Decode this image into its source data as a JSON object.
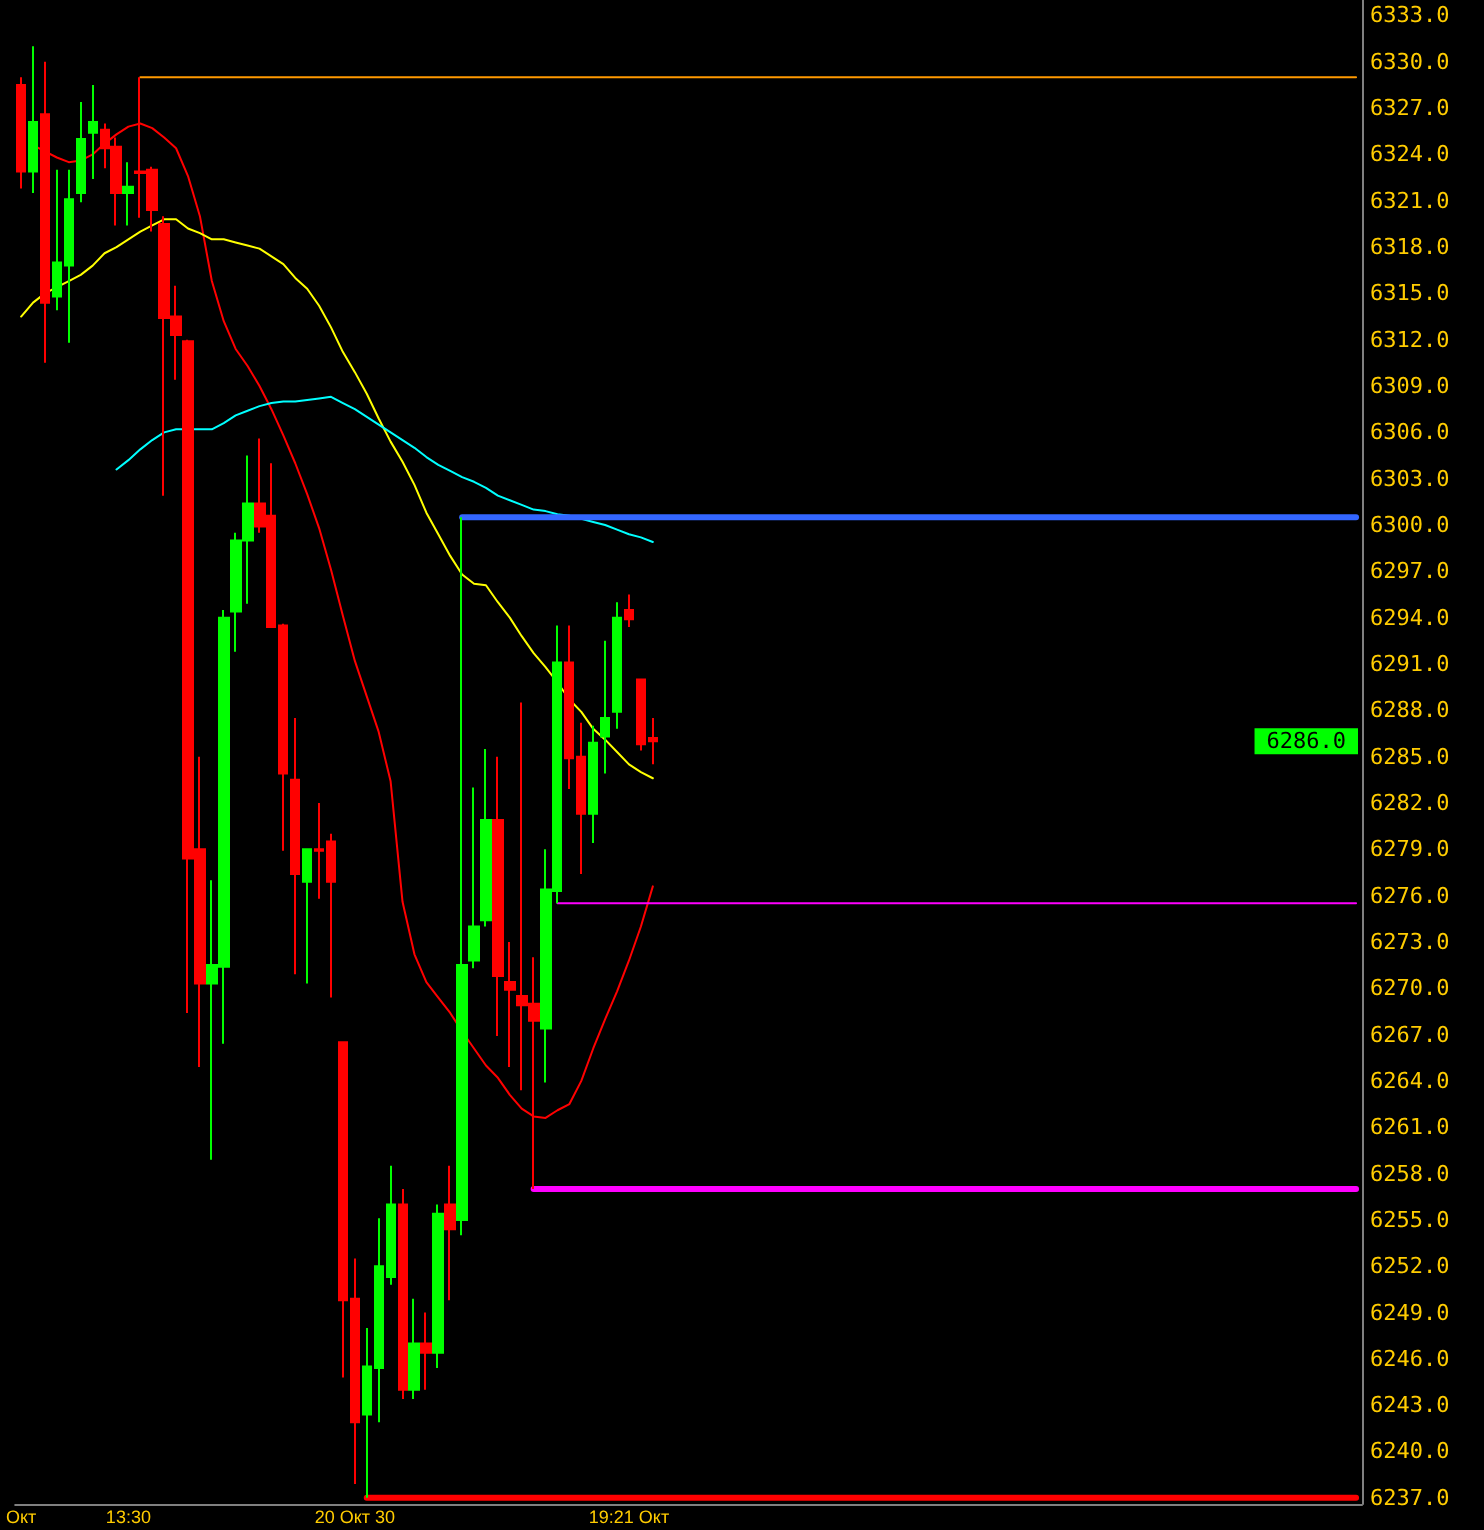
{
  "chart_data": {
    "type": "candlestick",
    "categories": [
      "Окт",
      null,
      null,
      null,
      null,
      null,
      null,
      null,
      null,
      "13:30",
      null,
      null,
      null,
      null,
      null,
      null,
      null,
      null,
      null,
      null,
      null,
      null,
      null,
      null,
      null,
      null,
      null,
      null,
      "20 Окт 30",
      null,
      null,
      null,
      null,
      null,
      null,
      null,
      null,
      null,
      null,
      null,
      null,
      null,
      null,
      null,
      null,
      null,
      null,
      null,
      null,
      null,
      null,
      "19:21 Окт",
      null,
      null,
      null,
      null,
      null,
      null,
      null,
      null,
      null,
      null,
      null,
      null,
      null,
      null,
      null,
      null,
      null,
      null,
      null,
      null,
      null,
      null,
      null,
      null,
      null,
      null,
      null,
      null,
      null,
      null,
      null,
      null,
      null,
      null,
      null,
      null,
      null,
      null,
      null,
      null,
      null,
      null,
      null,
      null,
      null,
      null,
      null,
      null,
      null,
      null,
      null,
      null,
      null,
      null,
      null,
      null,
      null,
      null,
      null,
      null,
      null
    ],
    "ohlc": [
      [
        6328.5,
        6329.0,
        6321.8,
        6322.9
      ],
      [
        6322.9,
        6331.0,
        6321.5,
        6326.1
      ],
      [
        6326.6,
        6330.0,
        6310.5,
        6314.4
      ],
      [
        6314.8,
        6323.0,
        6313.9,
        6317.0
      ],
      [
        6316.8,
        6323.0,
        6311.8,
        6321.1
      ],
      [
        6321.5,
        6327.4,
        6320.9,
        6325.0
      ],
      [
        6325.4,
        6328.5,
        6322.4,
        6326.1
      ],
      [
        6325.6,
        6326.0,
        6323.1,
        6324.4
      ],
      [
        6324.5,
        6325.1,
        6319.4,
        6321.5
      ],
      [
        6321.5,
        6323.5,
        6319.4,
        6321.9
      ],
      [
        6322.9,
        6329.0,
        6319.9,
        6322.8
      ],
      [
        6323.0,
        6323.2,
        6319.0,
        6320.4
      ],
      [
        6319.5,
        6320.0,
        6301.9,
        6313.4
      ],
      [
        6313.5,
        6315.5,
        6309.4,
        6312.3
      ],
      [
        6311.9,
        6312.0,
        6268.4,
        6278.4
      ],
      [
        6279.0,
        6285.0,
        6264.9,
        6270.3
      ],
      [
        6270.3,
        6277.0,
        6258.9,
        6271.5
      ],
      [
        6271.4,
        6294.5,
        6266.4,
        6294.0
      ],
      [
        6294.4,
        6299.5,
        6291.8,
        6299.0
      ],
      [
        6299.0,
        6304.5,
        6294.9,
        6301.4
      ],
      [
        6301.4,
        6305.6,
        6299.5,
        6299.9
      ],
      [
        6300.6,
        6304.0,
        6293.4,
        6293.4
      ],
      [
        6293.5,
        6293.6,
        6278.9,
        6283.9
      ],
      [
        6283.5,
        6287.5,
        6270.9,
        6277.4
      ],
      [
        6276.9,
        6279.0,
        6270.3,
        6279.0
      ],
      [
        6279.0,
        6282.0,
        6275.8,
        6278.9
      ],
      [
        6279.5,
        6280.0,
        6269.4,
        6276.9
      ],
      [
        6266.5,
        6266.5,
        6244.8,
        6249.8
      ],
      [
        6249.9,
        6252.5,
        6237.9,
        6241.9
      ],
      [
        6242.4,
        6248.0,
        6237.0,
        6245.5
      ],
      [
        6245.4,
        6255.1,
        6241.9,
        6252.0
      ],
      [
        6251.3,
        6258.5,
        6250.8,
        6256.0
      ],
      [
        6256.0,
        6257.0,
        6243.4,
        6244.0
      ],
      [
        6244.0,
        6249.9,
        6243.4,
        6247.0
      ],
      [
        6247.0,
        6249.0,
        6244.0,
        6246.4
      ],
      [
        6246.4,
        6256.0,
        6245.4,
        6255.4
      ],
      [
        6256.0,
        6258.5,
        6249.8,
        6254.4
      ],
      [
        6255.0,
        6300.5,
        6254.0,
        6271.5
      ],
      [
        6271.8,
        6283.0,
        6271.3,
        6274.0
      ],
      [
        6274.4,
        6285.5,
        6274.0,
        6280.9
      ],
      [
        6280.9,
        6285.0,
        6266.9,
        6270.8
      ],
      [
        6270.4,
        6273.0,
        6264.9,
        6269.9
      ],
      [
        6269.5,
        6288.5,
        6263.4,
        6268.9
      ],
      [
        6269.0,
        6272.0,
        6257.0,
        6267.9
      ],
      [
        6267.4,
        6279.0,
        6263.9,
        6276.4
      ],
      [
        6276.3,
        6293.5,
        6275.5,
        6291.1
      ],
      [
        6291.1,
        6293.5,
        6282.9,
        6284.9
      ],
      [
        6285.0,
        6287.2,
        6277.4,
        6281.3
      ],
      [
        6281.3,
        6287.0,
        6279.4,
        6285.9
      ],
      [
        6286.3,
        6292.5,
        6283.9,
        6287.5
      ],
      [
        6287.9,
        6295.0,
        6286.8,
        6294.0
      ],
      [
        6294.5,
        6295.5,
        6293.4,
        6293.9
      ],
      [
        6290.0,
        6290.0,
        6285.4,
        6285.8
      ],
      [
        6286.2,
        6287.5,
        6284.5,
        6286.0
      ],
      null,
      null,
      null,
      null,
      null,
      null,
      null,
      null,
      null,
      null,
      null,
      null,
      null,
      null,
      null,
      null,
      null,
      null,
      null,
      null,
      null,
      null,
      null,
      null,
      null,
      null,
      null,
      null,
      null,
      null,
      null,
      null,
      null,
      null,
      null,
      null,
      null,
      null,
      null,
      null,
      null,
      null,
      null,
      null,
      null,
      null,
      null,
      null,
      null,
      null,
      null,
      null,
      null,
      null,
      null,
      null,
      null,
      null,
      null
    ],
    "colors": [
      "#ff0000",
      "#00ff00",
      "#ff0000",
      "#00ff00",
      "#00ff00",
      "#00ff00",
      "#00ff00",
      "#ff0000",
      "#ff0000",
      "#00ff00",
      "#ff0000",
      "#ff0000",
      "#ff0000",
      "#ff0000",
      "#ff0000",
      "#ff0000",
      "#00ff00",
      "#00ff00",
      "#00ff00",
      "#00ff00",
      "#ff0000",
      "#ff0000",
      "#ff0000",
      "#ff0000",
      "#00ff00",
      "#ff0000",
      "#ff0000",
      "#ff0000",
      "#ff0000",
      "#00ff00",
      "#00ff00",
      "#00ff00",
      "#ff0000",
      "#00ff00",
      "#ff0000",
      "#00ff00",
      "#ff0000",
      "#00ff00",
      "#00ff00",
      "#00ff00",
      "#ff0000",
      "#ff0000",
      "#ff0000",
      "#ff0000",
      "#00ff00",
      "#00ff00",
      "#ff0000",
      "#ff0000",
      "#00ff00",
      "#00ff00",
      "#00ff00",
      "#ff0000",
      "#ff0000",
      "#ff0000",
      null,
      null,
      null,
      null,
      null,
      null,
      null,
      null,
      null,
      null,
      null,
      null,
      null,
      null,
      null,
      null,
      null,
      null,
      null,
      null,
      null,
      null,
      null,
      null,
      null,
      null,
      null,
      null,
      null,
      null,
      null,
      null,
      null,
      null,
      null,
      null,
      null,
      null,
      null,
      null,
      null,
      null,
      null,
      null,
      null,
      null,
      null,
      null,
      null,
      null,
      null,
      null,
      null,
      null,
      null,
      null,
      null,
      null,
      null
    ],
    "series": [
      {
        "type": "line",
        "color": "#ff0000",
        "values": [
          null,
          6324.6,
          6324.2,
          6323.8,
          6323.5,
          6323.6,
          6324.0,
          6324.7,
          6325.3,
          6325.8,
          6326.0,
          6325.7,
          6325.1,
          6324.4,
          6322.6,
          6320.0,
          6315.8,
          6313.2,
          6311.4,
          6310.3,
          6309.0,
          6307.5,
          6305.8,
          6304.0,
          6302.0,
          6299.8,
          6297.1,
          6294.1,
          6291.2,
          6288.9,
          6286.6,
          6283.4,
          6275.6,
          6272.2,
          6270.4,
          6269.4,
          6268.4,
          6267.2,
          6266.1,
          6265.0,
          6264.2,
          6263.1,
          6262.2,
          6261.7,
          6261.6,
          6262.1,
          6262.5,
          6264.0,
          6266.1,
          6268.0,
          6269.8,
          6271.8,
          6274.0,
          6276.6,
          null,
          null,
          null,
          null,
          null,
          null,
          null,
          null,
          null,
          null,
          null,
          null,
          null,
          null,
          null,
          null,
          null,
          null,
          null,
          null,
          null,
          null,
          null,
          null,
          null,
          null,
          null,
          null,
          null,
          null,
          null,
          null,
          null,
          null,
          null,
          null,
          null,
          null,
          null,
          null,
          null,
          null,
          null,
          null,
          null,
          null,
          null,
          null,
          null,
          null,
          null,
          null,
          null,
          null,
          null,
          null,
          null,
          null,
          null
        ]
      },
      {
        "type": "line",
        "color": "#ffff00",
        "values": [
          6313.5,
          6314.4,
          6315.0,
          6315.4,
          6315.8,
          6316.2,
          6316.8,
          6317.6,
          6318.0,
          6318.5,
          6319.0,
          6319.4,
          6319.8,
          6319.8,
          6319.2,
          6318.9,
          6318.5,
          6318.5,
          6318.3,
          6318.1,
          6317.9,
          6317.4,
          6316.9,
          6316.0,
          6315.3,
          6314.2,
          6312.8,
          6311.2,
          6309.9,
          6308.5,
          6306.9,
          6305.4,
          6304.1,
          6302.6,
          6300.8,
          6299.4,
          6298.0,
          6296.8,
          6296.2,
          6296.1,
          6295.0,
          6294.0,
          6292.8,
          6291.7,
          6290.8,
          6289.8,
          6288.7,
          6287.9,
          6286.8,
          6286.1,
          6285.3,
          6284.5,
          6284.0,
          6283.6,
          null,
          null,
          null,
          null,
          null,
          null,
          null,
          null,
          null,
          null,
          null,
          null,
          null,
          null,
          null,
          null,
          null,
          null,
          null,
          null,
          null,
          null,
          null,
          null,
          null,
          null,
          null,
          null,
          null,
          null,
          null,
          null,
          null,
          null,
          null,
          null,
          null,
          null,
          null,
          null,
          null,
          null,
          null,
          null,
          null,
          null,
          null,
          null,
          null,
          null,
          null,
          null,
          null,
          null,
          null,
          null,
          null,
          null,
          null
        ]
      },
      {
        "type": "line",
        "color": "#00ffff",
        "values": [
          null,
          null,
          null,
          null,
          null,
          null,
          null,
          null,
          6303.6,
          6304.2,
          6304.9,
          6305.5,
          6306.0,
          6306.2,
          6306.2,
          6306.2,
          6306.2,
          6306.6,
          6307.1,
          6307.4,
          6307.7,
          6307.9,
          6308.0,
          6308.0,
          6308.1,
          6308.2,
          6308.3,
          6307.9,
          6307.5,
          6307.0,
          6306.5,
          6306.0,
          6305.5,
          6305.0,
          6304.4,
          6303.9,
          6303.5,
          6303.1,
          6302.8,
          6302.4,
          6301.9,
          6301.6,
          6301.3,
          6301.0,
          6300.9,
          6300.7,
          6300.6,
          6300.4,
          6300.2,
          6300.0,
          6299.7,
          6299.4,
          6299.2,
          6298.9,
          null,
          null,
          null,
          null,
          null,
          null,
          null,
          null,
          null,
          null,
          null,
          null,
          null,
          null,
          null,
          null,
          null,
          null,
          null,
          null,
          null,
          null,
          null,
          null,
          null,
          null,
          null,
          null,
          null,
          null,
          null,
          null,
          null,
          null,
          null,
          null,
          null,
          null,
          null,
          null,
          null,
          null,
          null,
          null,
          null,
          null,
          null,
          null,
          null,
          null,
          null,
          null,
          null,
          null,
          null,
          null,
          null,
          null,
          null
        ]
      },
      {
        "type": "line",
        "color": "#ff9900",
        "values": [
          null,
          null,
          null,
          null,
          null,
          null,
          null,
          null,
          null,
          null,
          6329,
          6329,
          6329,
          6329,
          6329,
          6329,
          6329,
          6329,
          6329,
          6329,
          6329,
          6329,
          6329,
          6329,
          6329,
          6329,
          6329,
          6329,
          6329,
          6329,
          6329,
          6329,
          6329,
          6329,
          6329,
          6329,
          6329,
          6329,
          6329,
          6329,
          6329,
          6329,
          6329,
          6329,
          6329,
          6329,
          6329,
          6329,
          6329,
          6329,
          6329,
          6329,
          6329,
          6329,
          6329,
          6329,
          6329,
          6329,
          6329,
          6329,
          6329,
          6329,
          6329,
          6329,
          6329,
          6329,
          6329,
          6329,
          6329,
          6329,
          6329,
          6329,
          6329,
          6329,
          6329,
          6329,
          6329,
          6329,
          6329,
          6329,
          6329,
          6329,
          6329,
          6329,
          6329,
          6329,
          6329,
          6329,
          6329,
          6329,
          6329,
          6329,
          6329,
          6329,
          6329,
          6329,
          6329,
          6329,
          6329,
          6329,
          6329,
          6329,
          6329,
          6329,
          6329,
          6329,
          6329,
          6329,
          6329,
          6329,
          6329,
          6329,
          6329
        ]
      },
      {
        "type": "line",
        "color": "#3366ff",
        "values": [
          null,
          null,
          null,
          null,
          null,
          null,
          null,
          null,
          null,
          null,
          null,
          null,
          null,
          null,
          null,
          null,
          null,
          null,
          null,
          null,
          null,
          null,
          null,
          null,
          null,
          null,
          null,
          null,
          null,
          null,
          null,
          null,
          null,
          null,
          null,
          null,
          null,
          6300.5,
          6300.5,
          6300.5,
          6300.5,
          6300.5,
          6300.5,
          6300.5,
          6300.5,
          6300.5,
          6300.5,
          6300.5,
          6300.5,
          6300.5,
          6300.5,
          6300.5,
          6300.5,
          6300.5,
          6300.5,
          6300.5,
          6300.5,
          6300.5,
          6300.5,
          6300.5,
          6300.5,
          6300.5,
          6300.5,
          6300.5,
          6300.5,
          6300.5,
          6300.5,
          6300.5,
          6300.5,
          6300.5,
          6300.5,
          6300.5,
          6300.5,
          6300.5,
          6300.5,
          6300.5,
          6300.5,
          6300.5,
          6300.5,
          6300.5,
          6300.5,
          6300.5,
          6300.5,
          6300.5,
          6300.5,
          6300.5,
          6300.5,
          6300.5,
          6300.5,
          6300.5,
          6300.5,
          6300.5,
          6300.5,
          6300.5,
          6300.5,
          6300.5,
          6300.5,
          6300.5,
          6300.5,
          6300.5,
          6300.5,
          6300.5,
          6300.5,
          6300.5,
          6300.5,
          6300.5,
          6300.5,
          6300.5,
          6300.5,
          6300.5,
          6300.5,
          6300.5,
          6300.5
        ]
      },
      {
        "type": "line",
        "color": "#ff00ff",
        "values": [
          null,
          null,
          null,
          null,
          null,
          null,
          null,
          null,
          null,
          null,
          null,
          null,
          null,
          null,
          null,
          null,
          null,
          null,
          null,
          null,
          null,
          null,
          null,
          null,
          null,
          null,
          null,
          null,
          null,
          null,
          null,
          null,
          null,
          null,
          null,
          null,
          null,
          null,
          null,
          null,
          null,
          null,
          null,
          null,
          null,
          6275.5,
          6275.5,
          6275.5,
          6275.5,
          6275.5,
          6275.5,
          6275.5,
          6275.5,
          6275.5,
          6275.5,
          6275.5,
          6275.5,
          6275.5,
          6275.5,
          6275.5,
          6275.5,
          6275.5,
          6275.5,
          6275.5,
          6275.5,
          6275.5,
          6275.5,
          6275.5,
          6275.5,
          6275.5,
          6275.5,
          6275.5,
          6275.5,
          6275.5,
          6275.5,
          6275.5,
          6275.5,
          6275.5,
          6275.5,
          6275.5,
          6275.5,
          6275.5,
          6275.5,
          6275.5,
          6275.5,
          6275.5,
          6275.5,
          6275.5,
          6275.5,
          6275.5,
          6275.5,
          6275.5,
          6275.5,
          6275.5,
          6275.5,
          6275.5,
          6275.5,
          6275.5,
          6275.5,
          6275.5,
          6275.5,
          6275.5,
          6275.5,
          6275.5,
          6275.5,
          6275.5,
          6275.5,
          6275.5,
          6275.5,
          6275.5,
          6275.5,
          6275.5,
          6275.5
        ]
      },
      {
        "type": "line",
        "color": "#ff00ff",
        "values": [
          null,
          null,
          null,
          null,
          null,
          null,
          null,
          null,
          null,
          null,
          null,
          null,
          null,
          null,
          null,
          null,
          null,
          null,
          null,
          null,
          null,
          null,
          null,
          null,
          null,
          null,
          null,
          null,
          null,
          null,
          null,
          null,
          null,
          null,
          null,
          null,
          null,
          null,
          null,
          null,
          null,
          null,
          null,
          6257,
          6257,
          6257,
          6257,
          6257,
          6257,
          6257,
          6257,
          6257,
          6257,
          6257,
          6257,
          6257,
          6257,
          6257,
          6257,
          6257,
          6257,
          6257,
          6257,
          6257,
          6257,
          6257,
          6257,
          6257,
          6257,
          6257,
          6257,
          6257,
          6257,
          6257,
          6257,
          6257,
          6257,
          6257,
          6257,
          6257,
          6257,
          6257,
          6257,
          6257,
          6257,
          6257,
          6257,
          6257,
          6257,
          6257,
          6257,
          6257,
          6257,
          6257,
          6257,
          6257,
          6257,
          6257,
          6257,
          6257,
          6257,
          6257,
          6257,
          6257,
          6257,
          6257,
          6257,
          6257,
          6257,
          6257,
          6257,
          6257,
          6257
        ]
      },
      {
        "type": "line",
        "color": "#ff0000",
        "values": [
          null,
          null,
          null,
          null,
          null,
          null,
          null,
          null,
          null,
          null,
          null,
          null,
          null,
          null,
          null,
          null,
          null,
          null,
          null,
          null,
          null,
          null,
          null,
          null,
          null,
          null,
          null,
          null,
          null,
          6237,
          6237,
          6237,
          6237,
          6237,
          6237,
          6237,
          6237,
          6237,
          6237,
          6237,
          6237,
          6237,
          6237,
          6237,
          6237,
          6237,
          6237,
          6237,
          6237,
          6237,
          6237,
          6237,
          6237,
          6237,
          6237,
          6237,
          6237,
          6237,
          6237,
          6237,
          6237,
          6237,
          6237,
          6237,
          6237,
          6237,
          6237,
          6237,
          6237,
          6237,
          6237,
          6237,
          6237,
          6237,
          6237,
          6237,
          6237,
          6237,
          6237,
          6237,
          6237,
          6237,
          6237,
          6237,
          6237,
          6237,
          6237,
          6237,
          6237,
          6237,
          6237,
          6237,
          6237,
          6237,
          6237,
          6237,
          6237,
          6237,
          6237,
          6237,
          6237,
          6237,
          6237,
          6237,
          6237,
          6237,
          6237,
          6237,
          6237,
          6237,
          6237,
          6237,
          6237
        ]
      }
    ],
    "ylim": [
      6236.6,
      6334
    ],
    "yticks": [
      {
        "value": 6237,
        "label": "6237.0"
      },
      {
        "value": 6240,
        "label": "6240.0"
      },
      {
        "value": 6243,
        "label": "6243.0"
      },
      {
        "value": 6246,
        "label": "6246.0"
      },
      {
        "value": 6249,
        "label": "6249.0"
      },
      {
        "value": 6252,
        "label": "6252.0"
      },
      {
        "value": 6255,
        "label": "6255.0"
      },
      {
        "value": 6258,
        "label": "6258.0"
      },
      {
        "value": 6261,
        "label": "6261.0"
      },
      {
        "value": 6264,
        "label": "6264.0"
      },
      {
        "value": 6267,
        "label": "6267.0"
      },
      {
        "value": 6270,
        "label": "6270.0"
      },
      {
        "value": 6273,
        "label": "6273.0"
      },
      {
        "value": 6276,
        "label": "6276.0"
      },
      {
        "value": 6279,
        "label": "6279.0"
      },
      {
        "value": 6282,
        "label": "6282.0"
      },
      {
        "value": 6285,
        "label": "6285.0"
      },
      {
        "value": 6288,
        "label": "6288.0"
      },
      {
        "value": 6291,
        "label": "6291.0"
      },
      {
        "value": 6294,
        "label": "6294.0"
      },
      {
        "value": 6297,
        "label": "6297.0"
      },
      {
        "value": 6300,
        "label": "6300.0"
      },
      {
        "value": 6303,
        "label": "6303.0"
      },
      {
        "value": 6306,
        "label": "6306.0"
      },
      {
        "value": 6309,
        "label": "6309.0"
      },
      {
        "value": 6312,
        "label": "6312.0"
      },
      {
        "value": 6315,
        "label": "6315.0"
      },
      {
        "value": 6318,
        "label": "6318.0"
      },
      {
        "value": 6321,
        "label": "6321.0"
      },
      {
        "value": 6324,
        "label": "6324.0"
      },
      {
        "value": 6327,
        "label": "6327.0"
      },
      {
        "value": 6330,
        "label": "6330.0"
      },
      {
        "value": 6333,
        "label": "6333.0"
      }
    ],
    "annotations": [
      "6286.0"
    ],
    "marker": "none"
  }
}
